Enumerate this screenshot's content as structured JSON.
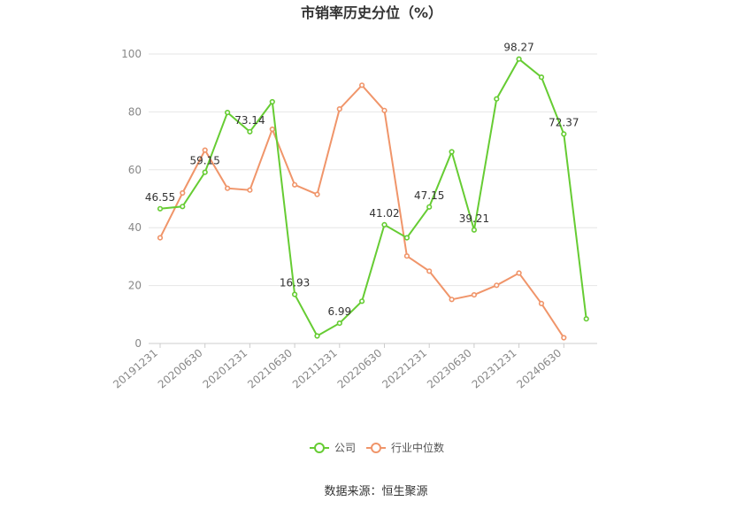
{
  "chart_data": {
    "type": "line",
    "title": "市销率历史分位（%）",
    "x": [
      "20191231",
      "20200331",
      "20200630",
      "20200930",
      "20201231",
      "20210331",
      "20210630",
      "20210930",
      "20211231",
      "20220331",
      "20220630",
      "20220930",
      "20221231",
      "20230331",
      "20230630",
      "20230930",
      "20231231",
      "20240331",
      "20240630",
      "20240930"
    ],
    "xtick_labels": [
      "20191231",
      "20200630",
      "20201231",
      "20210630",
      "20211231",
      "20220630",
      "20221231",
      "20230630",
      "20231231",
      "20240630"
    ],
    "ylim": [
      0,
      100
    ],
    "yticks": [
      0,
      20,
      40,
      60,
      80,
      100
    ],
    "grid": true,
    "legend_position": "bottom",
    "series": [
      {
        "name": "公司",
        "color": "#66cc33",
        "values": [
          46.55,
          47.3,
          59.15,
          79.8,
          73.14,
          83.5,
          16.93,
          2.6,
          6.99,
          14.6,
          41.02,
          36.5,
          47.15,
          66.2,
          39.21,
          84.5,
          98.27,
          92.0,
          72.37,
          8.5
        ],
        "labels": [
          "46.55",
          "",
          "59.15",
          "",
          "73.14",
          "",
          "16.93",
          "",
          "6.99",
          "",
          "41.02",
          "",
          "47.15",
          "",
          "39.21",
          "",
          "98.27",
          "",
          "72.37",
          ""
        ]
      },
      {
        "name": "行业中位数",
        "color": "#f0956a",
        "values": [
          36.5,
          52.0,
          66.8,
          53.6,
          53.0,
          74.0,
          54.8,
          51.5,
          81.0,
          89.2,
          80.5,
          30.2,
          25.0,
          15.2,
          16.8,
          20.1,
          24.3,
          13.8,
          2.0,
          null
        ]
      }
    ]
  },
  "source_text": "数据来源：恒生聚源"
}
